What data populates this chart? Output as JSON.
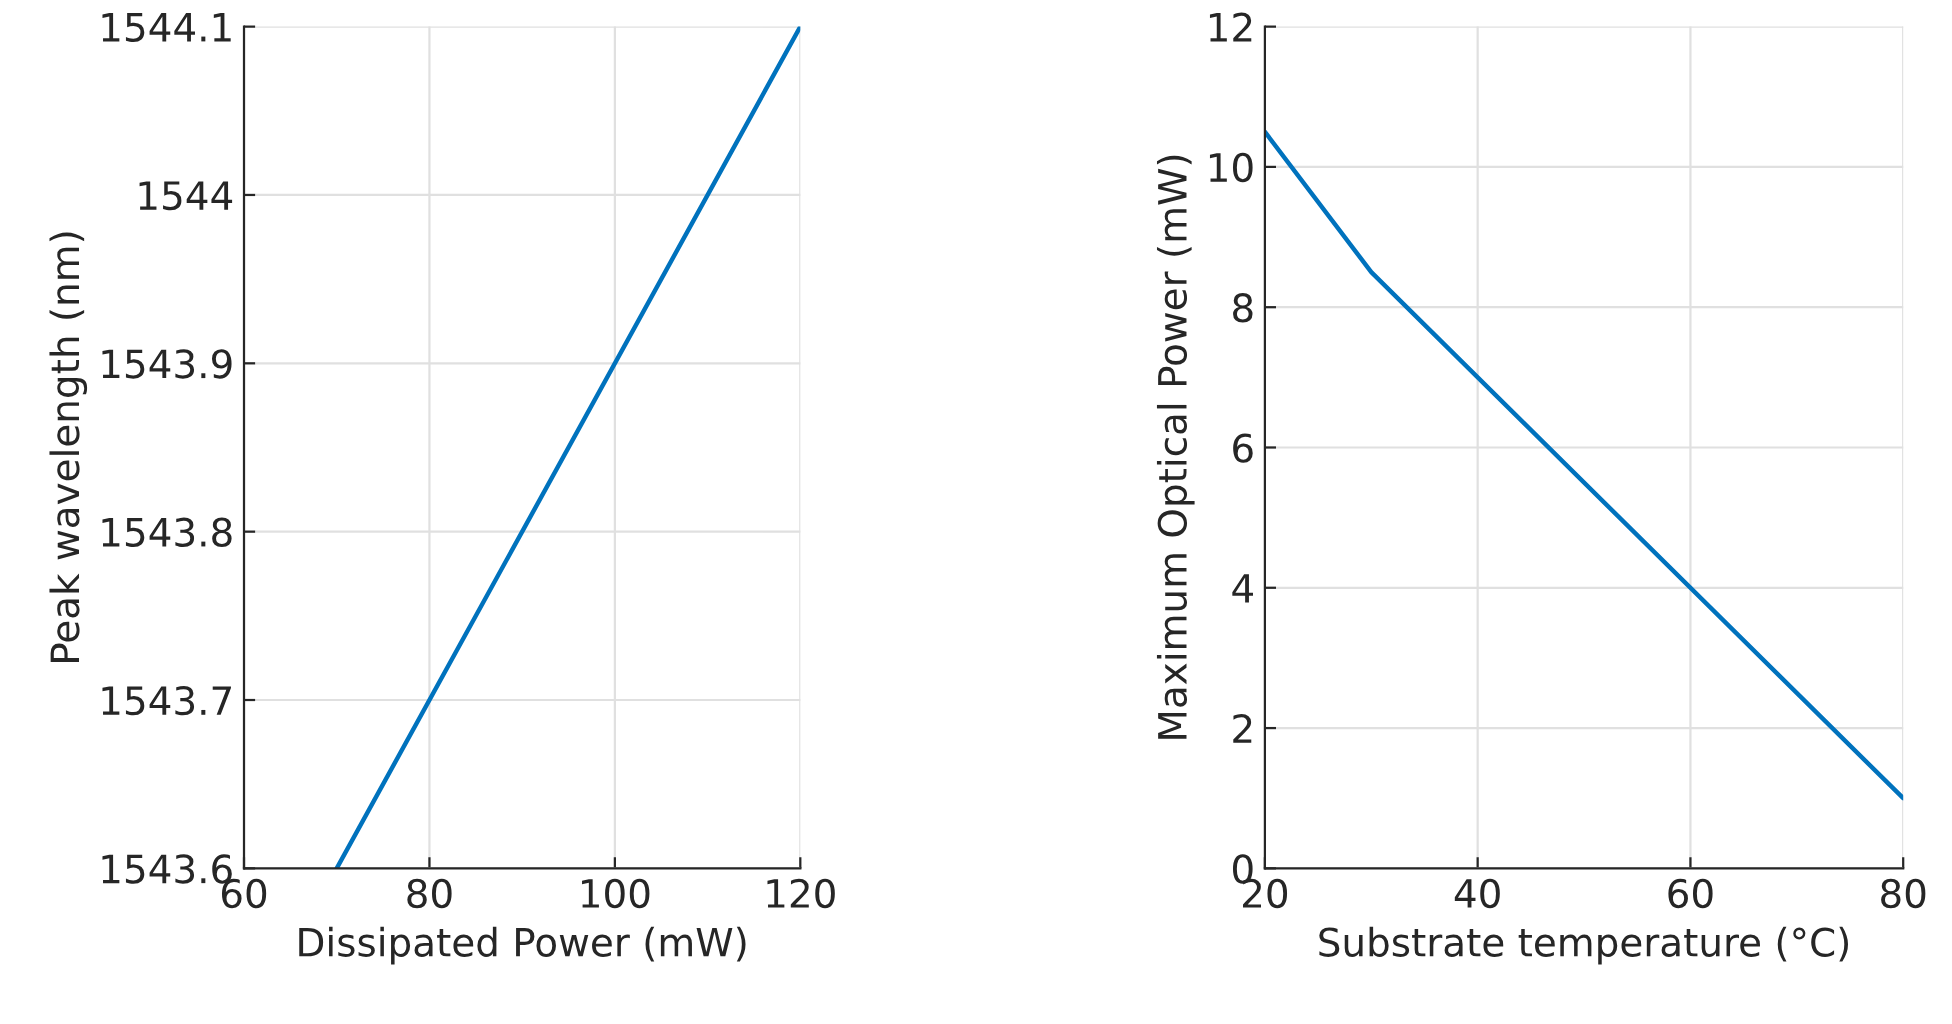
{
  "chart_data": [
    {
      "type": "line",
      "xlabel": "Dissipated Power (mW)",
      "ylabel": "Peak wavelength (nm)",
      "series": [
        {
          "color": "#0072bd",
          "x": [
            70,
            120
          ],
          "values": [
            1543.6,
            1544.1
          ]
        }
      ],
      "xlim": [
        60,
        120
      ],
      "xticks": [
        60,
        80,
        100,
        120
      ],
      "ylim": [
        1543.6,
        1544.1
      ],
      "yticks": [
        1543.6,
        1543.7,
        1543.8,
        1543.9,
        1544,
        1544.1
      ],
      "grid": true
    },
    {
      "type": "line",
      "xlabel": "Substrate temperature (°C)",
      "ylabel": "Maximum Optical Power (mW)",
      "series": [
        {
          "color": "#0072bd",
          "x": [
            20,
            30,
            80
          ],
          "values": [
            10.5,
            8.5,
            1.0
          ]
        }
      ],
      "xlim": [
        20,
        80
      ],
      "xticks": [
        20,
        40,
        60,
        80
      ],
      "ylim": [
        0,
        12
      ],
      "yticks": [
        0,
        2,
        4,
        6,
        8,
        10,
        12
      ],
      "grid": true
    }
  ]
}
